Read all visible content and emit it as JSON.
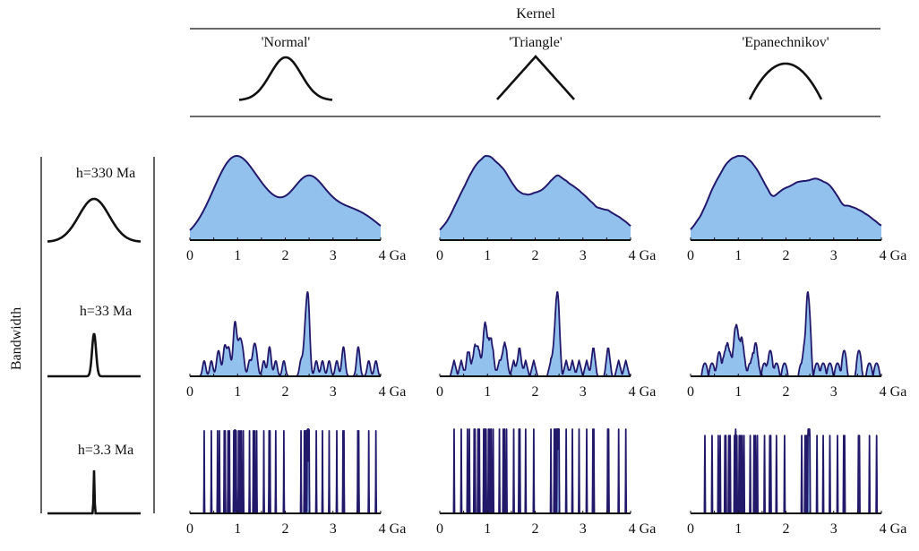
{
  "chart_data": {
    "type": "area",
    "header_label": "Kernel",
    "side_label": "Bandwidth",
    "kernels": [
      "'Normal'",
      "'Triangle'",
      "'Epanechnikov'"
    ],
    "bandwidths": [
      {
        "label": "h=330 Ma",
        "h_ga": 0.33
      },
      {
        "label": "h=33 Ma",
        "h_ga": 0.033
      },
      {
        "label": "h=3.3 Ma",
        "h_ga": 0.0033
      }
    ],
    "xlim": [
      0,
      4
    ],
    "x_ticks": [
      "0",
      "1",
      "2",
      "3",
      "4 Ga"
    ],
    "x_unit": "Ga",
    "sample_ages_ga": [
      0.58,
      0.62,
      0.72,
      0.74,
      0.8,
      0.83,
      0.92,
      0.94,
      0.95,
      0.97,
      1.02,
      1.05,
      1.08,
      1.12,
      1.25,
      1.33,
      1.36,
      1.4,
      1.55,
      1.66,
      1.68,
      1.8,
      1.97,
      2.33,
      2.4,
      2.42,
      2.44,
      2.46,
      2.47,
      2.48,
      2.49,
      2.5,
      2.65,
      2.78,
      2.92,
      3.08,
      3.21,
      3.23,
      3.52,
      3.54,
      0.3,
      0.45,
      3.75,
      3.9
    ],
    "colors": {
      "fill": "#92c1ee",
      "line": "#23196b",
      "axis": "#111111"
    }
  }
}
